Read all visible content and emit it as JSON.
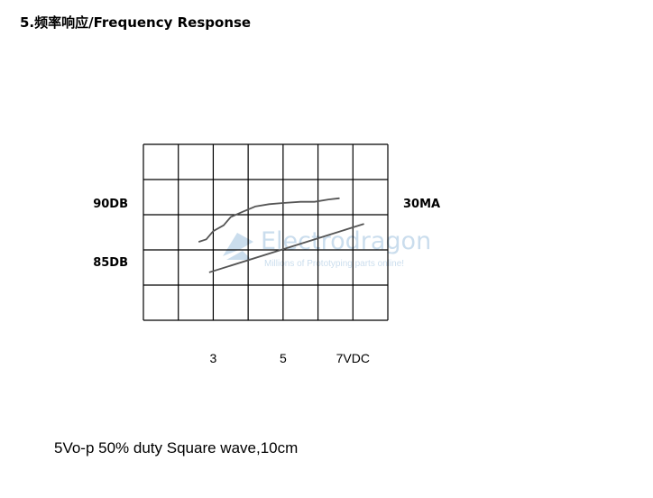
{
  "heading": "5.频率响应/Frequency Response",
  "caption": "5Vo-p 50% duty Square wave,10cm",
  "watermark": {
    "title": "Electrodragon",
    "tagline": "Millions of Prototyping parts online!"
  },
  "chart_data": {
    "type": "line",
    "title": "",
    "xlabel": "",
    "ylabel": "",
    "grid": true,
    "x_ticks": [
      {
        "x": 3,
        "label": "3"
      },
      {
        "x": 5,
        "label": "5"
      },
      {
        "x": 7,
        "label": "7VDC"
      }
    ],
    "y_left_ticks": [
      {
        "y": 90,
        "label": "90DB"
      },
      {
        "y": 85,
        "label": "85DB"
      }
    ],
    "y_right_ticks": [
      {
        "y": 90,
        "label": "30MA"
      }
    ],
    "xlim": [
      1,
      8
    ],
    "ylim": [
      80,
      95
    ],
    "series": [
      {
        "color": "#555555",
        "points": [
          [
            2.6,
            86.7
          ],
          [
            2.8,
            86.9
          ],
          [
            3.0,
            87.6
          ],
          [
            3.3,
            88.1
          ],
          [
            3.5,
            88.8
          ],
          [
            3.8,
            89.2
          ],
          [
            4.2,
            89.7
          ],
          [
            4.6,
            89.9
          ],
          [
            5.0,
            90.0
          ],
          [
            5.5,
            90.1
          ],
          [
            5.9,
            90.1
          ],
          [
            6.3,
            90.3
          ],
          [
            6.6,
            90.4
          ]
        ]
      },
      {
        "color": "#555555",
        "points": [
          [
            2.9,
            84.1
          ],
          [
            7.3,
            88.2
          ]
        ]
      }
    ]
  }
}
